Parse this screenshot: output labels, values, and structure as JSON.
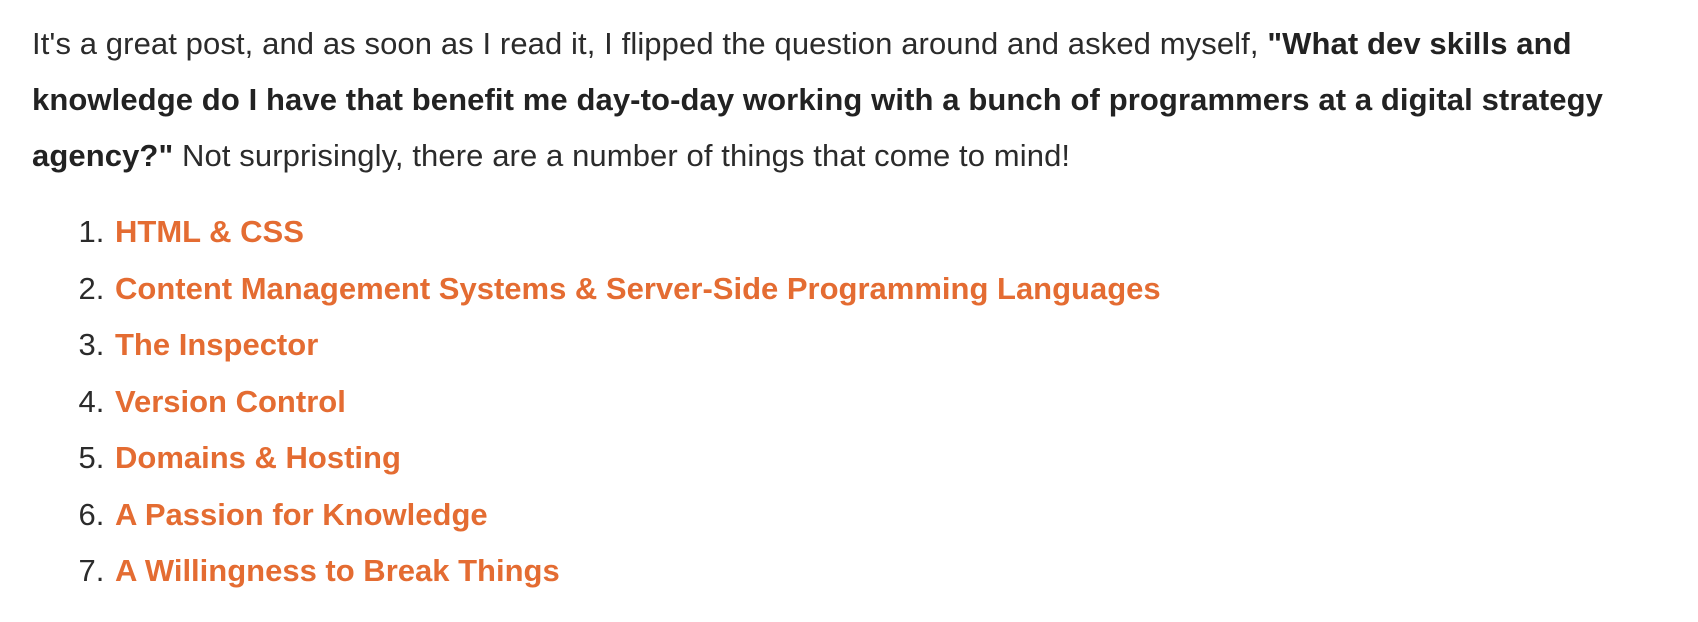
{
  "intro": {
    "lead": "It's a great post, and as soon as I read it, I flipped the question around and asked myself, ",
    "bold_question": "\"What dev skills and knowledge do I have that benefit me day-to-day working with a bunch of programmers at a digital strategy agency?\"",
    "tail": " Not surprisingly, there are a number of things that come to mind!"
  },
  "list": {
    "items": [
      {
        "label": "HTML & CSS"
      },
      {
        "label": "Content Management Systems & Server-Side Programming Languages"
      },
      {
        "label": "The Inspector"
      },
      {
        "label": "Version Control"
      },
      {
        "label": "Domains & Hosting"
      },
      {
        "label": "A Passion for Knowledge"
      },
      {
        "label": "A Willingness to Break Things"
      }
    ]
  },
  "colors": {
    "link": "#e46c32",
    "text": "#2b2b2b"
  }
}
